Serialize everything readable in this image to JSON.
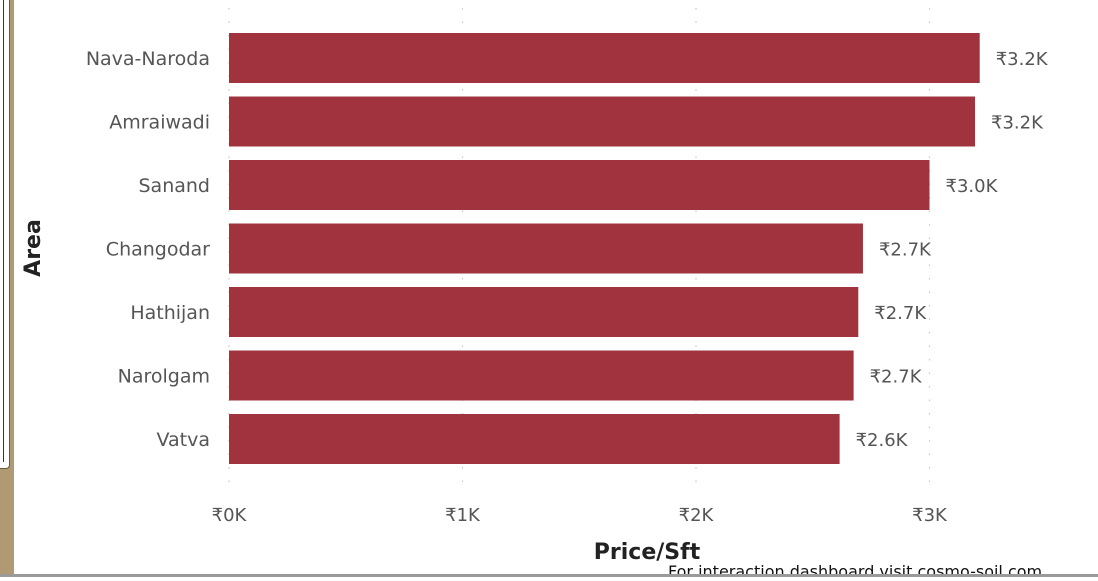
{
  "chart_data": {
    "type": "bar",
    "orientation": "horizontal",
    "categories": [
      "Nava-Naroda",
      "Amraiwadi",
      "Sanand",
      "Changodar",
      "Hathijan",
      "Narolgam",
      "Vatva"
    ],
    "values": [
      3215,
      3195,
      3000,
      2715,
      2695,
      2675,
      2615
    ],
    "data_labels": [
      "₹3.2K",
      "₹3.2K",
      "₹3.0K",
      "₹2.7K",
      "₹2.7K",
      "₹2.7K",
      "₹2.6K"
    ],
    "x_ticks": [
      0,
      1000,
      2000,
      3000
    ],
    "x_tick_labels": [
      "₹0K",
      "₹1K",
      "₹2K",
      "₹3K"
    ],
    "xlim": [
      0,
      3600
    ],
    "xlabel": "Price/Sft",
    "ylabel": "Area",
    "grid": "vertical dotted",
    "bar_color": "#a0333e"
  },
  "footer": {
    "note": "For interaction dashboard visit cosmo-soil.com"
  }
}
